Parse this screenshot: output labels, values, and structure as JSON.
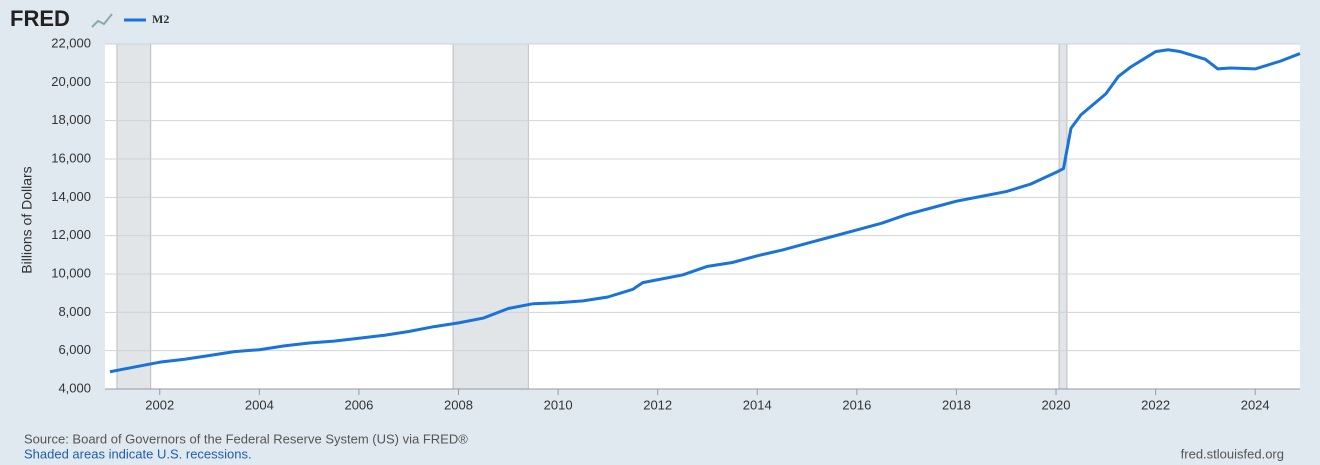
{
  "logo": "FRED",
  "source": "Source: Board of Governors of the Federal Reserve System (US) via FRED®",
  "note": "Shaded areas indicate U.S. recessions.",
  "url": "fred.stlouisfed.org",
  "chart_data": {
    "type": "line",
    "ylabel": "Billions of Dollars",
    "x": [
      2001.0,
      2001.5,
      2002.0,
      2002.5,
      2003.0,
      2003.5,
      2004.0,
      2004.5,
      2005.0,
      2005.5,
      2006.0,
      2006.5,
      2007.0,
      2007.5,
      2008.0,
      2008.5,
      2009.0,
      2009.5,
      2010.0,
      2010.5,
      2011.0,
      2011.5,
      2011.7,
      2012.0,
      2012.5,
      2013.0,
      2013.5,
      2014.0,
      2014.5,
      2015.0,
      2015.5,
      2016.0,
      2016.5,
      2017.0,
      2017.5,
      2018.0,
      2018.5,
      2019.0,
      2019.5,
      2020.0,
      2020.15,
      2020.3,
      2020.5,
      2021.0,
      2021.25,
      2021.5,
      2022.0,
      2022.25,
      2022.5,
      2023.0,
      2023.25,
      2023.5,
      2024.0,
      2024.5,
      2024.9
    ],
    "series": [
      {
        "name": "M2",
        "color": "#1a73d9",
        "values": [
          4900,
          5150,
          5400,
          5550,
          5750,
          5950,
          6050,
          6250,
          6400,
          6500,
          6650,
          6800,
          7000,
          7250,
          7450,
          7700,
          8200,
          8450,
          8500,
          8600,
          8800,
          9200,
          9550,
          9700,
          9950,
          10400,
          10600,
          10950,
          11250,
          11600,
          11950,
          12300,
          12650,
          13100,
          13450,
          13800,
          14050,
          14300,
          14700,
          15300,
          15500,
          17600,
          18300,
          19400,
          20300,
          20800,
          21600,
          21700,
          21600,
          21200,
          20700,
          20750,
          20700,
          21100,
          21500
        ]
      }
    ],
    "recessions": [
      [
        2001.14,
        2001.82
      ],
      [
        2007.89,
        2009.4
      ],
      [
        2020.06,
        2020.22
      ]
    ],
    "xlim": [
      2000.9,
      2024.9
    ],
    "xticks": [
      2002,
      2004,
      2006,
      2008,
      2010,
      2012,
      2014,
      2016,
      2018,
      2020,
      2022,
      2024
    ],
    "ylim": [
      4000,
      22000
    ],
    "yticks": [
      {
        "value": 4000,
        "label": "4,000"
      },
      {
        "value": 6000,
        "label": "6,000"
      },
      {
        "value": 8000,
        "label": "8,000"
      },
      {
        "value": 10000,
        "label": "10,000"
      },
      {
        "value": 12000,
        "label": "12,000"
      },
      {
        "value": 14000,
        "label": "14,000"
      },
      {
        "value": 16000,
        "label": "16,000"
      },
      {
        "value": 18000,
        "label": "18,000"
      },
      {
        "value": 20000,
        "label": "20,000"
      },
      {
        "value": 22000,
        "label": "22,000"
      }
    ],
    "grid": true
  }
}
